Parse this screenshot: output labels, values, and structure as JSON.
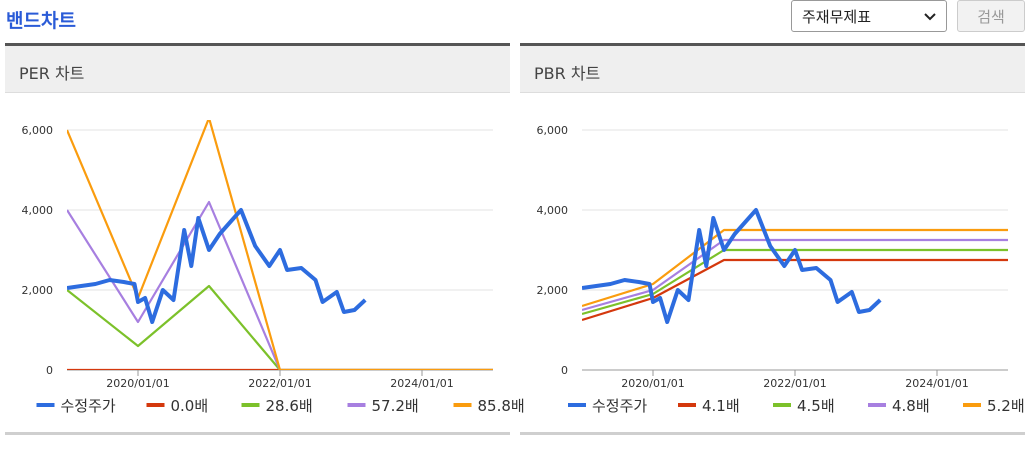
{
  "page_title": "밴드차트",
  "filter": {
    "selected": "주재무제표"
  },
  "search_button": "검색",
  "colors": {
    "price": "#2d6cdf",
    "band1": "#d4380d",
    "band2": "#7cc12a",
    "band3": "#a77fe0",
    "band4": "#fa9c0e"
  },
  "chart_data": [
    {
      "panel_title": "PER 차트",
      "type": "line",
      "yticks": [
        "0",
        "2,000",
        "4,000",
        "6,000"
      ],
      "xticks": [
        "2020/01/01",
        "2022/01/01",
        "2024/01/01"
      ],
      "ylim": [
        0,
        6000
      ],
      "xlim": [
        2019.0,
        2025.0
      ],
      "series": [
        {
          "name": "수정주가",
          "color": "#2d6cdf",
          "points": [
            [
              2019.0,
              2050
            ],
            [
              2019.2,
              2100
            ],
            [
              2019.4,
              2150
            ],
            [
              2019.6,
              2250
            ],
            [
              2019.8,
              2200
            ],
            [
              2019.95,
              2150
            ],
            [
              2020.0,
              1700
            ],
            [
              2020.1,
              1800
            ],
            [
              2020.2,
              1200
            ],
            [
              2020.35,
              2000
            ],
            [
              2020.5,
              1750
            ],
            [
              2020.65,
              3500
            ],
            [
              2020.75,
              2600
            ],
            [
              2020.85,
              3800
            ],
            [
              2021.0,
              3000
            ],
            [
              2021.15,
              3400
            ],
            [
              2021.3,
              3700
            ],
            [
              2021.45,
              4000
            ],
            [
              2021.65,
              3100
            ],
            [
              2021.85,
              2600
            ],
            [
              2022.0,
              3000
            ],
            [
              2022.1,
              2500
            ],
            [
              2022.3,
              2550
            ],
            [
              2022.5,
              2250
            ],
            [
              2022.6,
              1700
            ],
            [
              2022.8,
              1950
            ],
            [
              2022.9,
              1450
            ],
            [
              2023.05,
              1500
            ],
            [
              2023.2,
              1750
            ]
          ]
        },
        {
          "name": "0.0배",
          "color": "#d4380d",
          "points": [
            [
              2019.0,
              0
            ],
            [
              2025.0,
              0
            ]
          ]
        },
        {
          "name": "28.6배",
          "color": "#7cc12a",
          "points": [
            [
              2019.0,
              2000
            ],
            [
              2020.0,
              600
            ],
            [
              2021.0,
              2100
            ],
            [
              2022.0,
              0
            ],
            [
              2025.0,
              0
            ]
          ]
        },
        {
          "name": "57.2배",
          "color": "#a77fe0",
          "points": [
            [
              2019.0,
              4000
            ],
            [
              2020.0,
              1200
            ],
            [
              2021.0,
              4200
            ],
            [
              2022.0,
              0
            ],
            [
              2025.0,
              0
            ]
          ]
        },
        {
          "name": "85.8배",
          "color": "#fa9c0e",
          "points": [
            [
              2019.0,
              6000
            ],
            [
              2020.0,
              1800
            ],
            [
              2021.0,
              6300
            ],
            [
              2022.0,
              0
            ],
            [
              2025.0,
              0
            ]
          ]
        }
      ]
    },
    {
      "panel_title": "PBR 차트",
      "type": "line",
      "yticks": [
        "0",
        "2,000",
        "4,000",
        "6,000"
      ],
      "xticks": [
        "2020/01/01",
        "2022/01/01",
        "2024/01/01"
      ],
      "ylim": [
        0,
        6000
      ],
      "xlim": [
        2019.0,
        2025.0
      ],
      "series": [
        {
          "name": "수정주가",
          "color": "#2d6cdf",
          "points": [
            [
              2019.0,
              2050
            ],
            [
              2019.2,
              2100
            ],
            [
              2019.4,
              2150
            ],
            [
              2019.6,
              2250
            ],
            [
              2019.8,
              2200
            ],
            [
              2019.95,
              2150
            ],
            [
              2020.0,
              1700
            ],
            [
              2020.1,
              1800
            ],
            [
              2020.2,
              1200
            ],
            [
              2020.35,
              2000
            ],
            [
              2020.5,
              1750
            ],
            [
              2020.65,
              3500
            ],
            [
              2020.75,
              2600
            ],
            [
              2020.85,
              3800
            ],
            [
              2021.0,
              3000
            ],
            [
              2021.15,
              3400
            ],
            [
              2021.3,
              3700
            ],
            [
              2021.45,
              4000
            ],
            [
              2021.65,
              3100
            ],
            [
              2021.85,
              2600
            ],
            [
              2022.0,
              3000
            ],
            [
              2022.1,
              2500
            ],
            [
              2022.3,
              2550
            ],
            [
              2022.5,
              2250
            ],
            [
              2022.6,
              1700
            ],
            [
              2022.8,
              1950
            ],
            [
              2022.9,
              1450
            ],
            [
              2023.05,
              1500
            ],
            [
              2023.2,
              1750
            ]
          ]
        },
        {
          "name": "4.1배",
          "color": "#d4380d",
          "points": [
            [
              2019.0,
              1250
            ],
            [
              2020.0,
              1800
            ],
            [
              2021.0,
              2750
            ],
            [
              2025.0,
              2750
            ]
          ]
        },
        {
          "name": "4.5배",
          "color": "#7cc12a",
          "points": [
            [
              2019.0,
              1400
            ],
            [
              2020.0,
              1900
            ],
            [
              2021.0,
              3000
            ],
            [
              2025.0,
              3000
            ]
          ]
        },
        {
          "name": "4.8배",
          "color": "#a77fe0",
          "points": [
            [
              2019.0,
              1500
            ],
            [
              2020.0,
              2000
            ],
            [
              2021.0,
              3250
            ],
            [
              2025.0,
              3250
            ]
          ]
        },
        {
          "name": "5.2배",
          "color": "#fa9c0e",
          "points": [
            [
              2019.0,
              1600
            ],
            [
              2020.0,
              2150
            ],
            [
              2021.0,
              3500
            ],
            [
              2025.0,
              3500
            ]
          ]
        }
      ]
    }
  ]
}
